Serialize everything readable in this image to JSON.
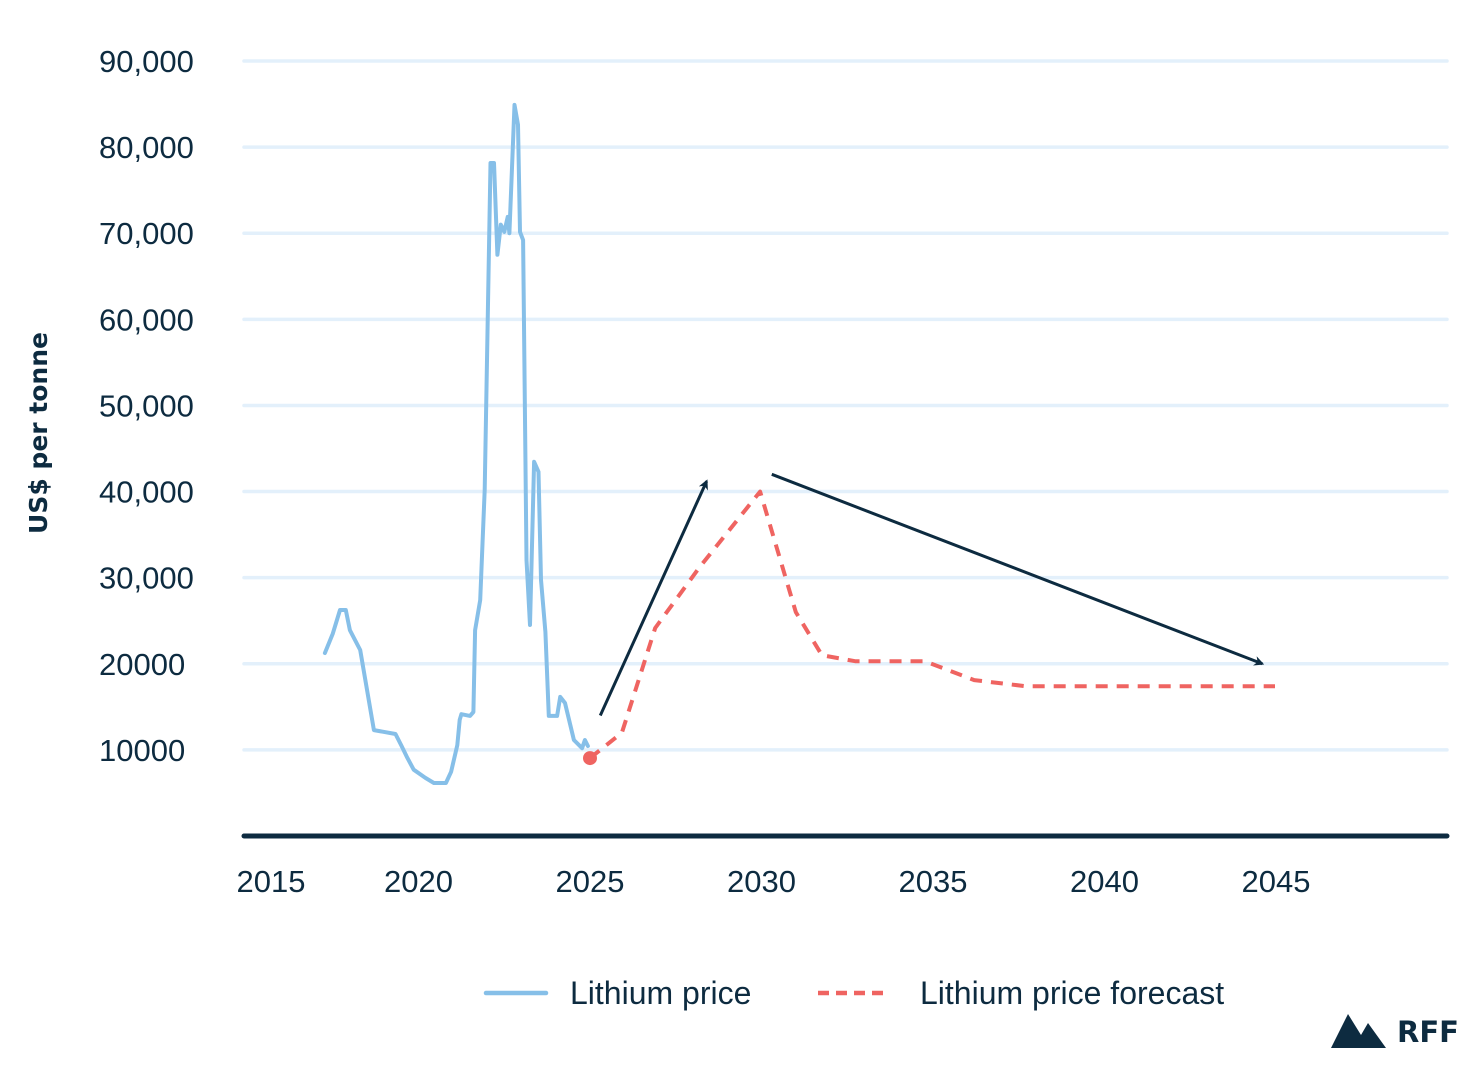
{
  "chart_data": {
    "type": "line",
    "title": "",
    "xlabel": "",
    "ylabel": "US$ per tonne",
    "xlim": [
      2015,
      2050
    ],
    "ylim": [
      0,
      90000
    ],
    "grid": true,
    "x_ticks": [
      "2015",
      "2020",
      "2025",
      "2030",
      "2035",
      "2040",
      "2045"
    ],
    "x_tick_values": [
      2015,
      2020,
      2025,
      2030,
      2035,
      2040,
      2045
    ],
    "y_ticks": [
      "10000",
      "20000",
      "30,000",
      "40,000",
      "50,000",
      "60,000",
      "70,000",
      "80,000",
      "90,000"
    ],
    "y_tick_values": [
      10000,
      20000,
      30000,
      40000,
      50000,
      60000,
      70000,
      80000,
      90000
    ],
    "legend_position": "bottom",
    "series": [
      {
        "name": "Lithium price",
        "style": "solid",
        "color": "#86bfe8",
        "x": [
          2017.27,
          2017.5,
          2017.71,
          2017.88,
          2018.0,
          2018.3,
          2018.7,
          2019.33,
          2019.5,
          2019.66,
          2019.86,
          2020.2,
          2020.45,
          2020.8,
          2020.95,
          2021.13,
          2021.2,
          2021.25,
          2021.5,
          2021.6,
          2021.65,
          2021.8,
          2021.93,
          2022.1,
          2022.2,
          2022.3,
          2022.4,
          2022.5,
          2022.6,
          2022.65,
          2022.8,
          2022.9,
          2022.96,
          2023.05,
          2023.15,
          2023.25,
          2023.37,
          2023.5,
          2023.57,
          2023.7,
          2023.8,
          2024.04,
          2024.13,
          2024.27,
          2024.53,
          2024.77,
          2024.85,
          2024.94
        ],
        "values": [
          21250,
          23500,
          26250,
          26250,
          23900,
          21600,
          12300,
          11850,
          10500,
          9200,
          7700,
          6750,
          6150,
          6150,
          7450,
          10550,
          13500,
          14150,
          13950,
          14400,
          23900,
          27400,
          40200,
          78150,
          78150,
          67500,
          71000,
          70150,
          71900,
          70000,
          84900,
          82600,
          70150,
          69200,
          32050,
          24500,
          43450,
          42300,
          29750,
          23700,
          13950,
          13950,
          16150,
          15450,
          11150,
          10200,
          11150,
          10450
        ]
      },
      {
        "name": "Lithium price forecast",
        "style": "dashed",
        "color": "#ef6461",
        "x": [
          2025,
          2025.93,
          2026.9,
          2028.2,
          2029.96,
          2031.0,
          2031.76,
          2032.73,
          2034.76,
          2036.2,
          2037.7,
          2044.97
        ],
        "values": [
          9050,
          12000,
          24150,
          31250,
          40000,
          26000,
          21000,
          20300,
          20300,
          18100,
          17400,
          17400
        ]
      }
    ],
    "start_marker": {
      "x": 2025,
      "value": 9050,
      "color": "#ef6461"
    },
    "annotations": [
      {
        "type": "arrow",
        "direction": "up",
        "from": [
          2025.3,
          14000
        ],
        "to": [
          2028.4,
          41200
        ],
        "color": "#0d2b40"
      },
      {
        "type": "arrow",
        "direction": "down",
        "from": [
          2030.3,
          42000
        ],
        "to": [
          2044.6,
          20000
        ],
        "color": "#0d2b40"
      }
    ],
    "colors": {
      "text": "#0d2b40",
      "grid": "#e3f0fb",
      "axis": "#0d2b40"
    }
  },
  "legend": {
    "items": [
      {
        "label": "Lithium price",
        "style": "solid",
        "color": "#86bfe8"
      },
      {
        "label": "Lithium price forecast",
        "style": "dashed",
        "color": "#ef6461"
      }
    ]
  },
  "logo": {
    "text": "RFF"
  }
}
